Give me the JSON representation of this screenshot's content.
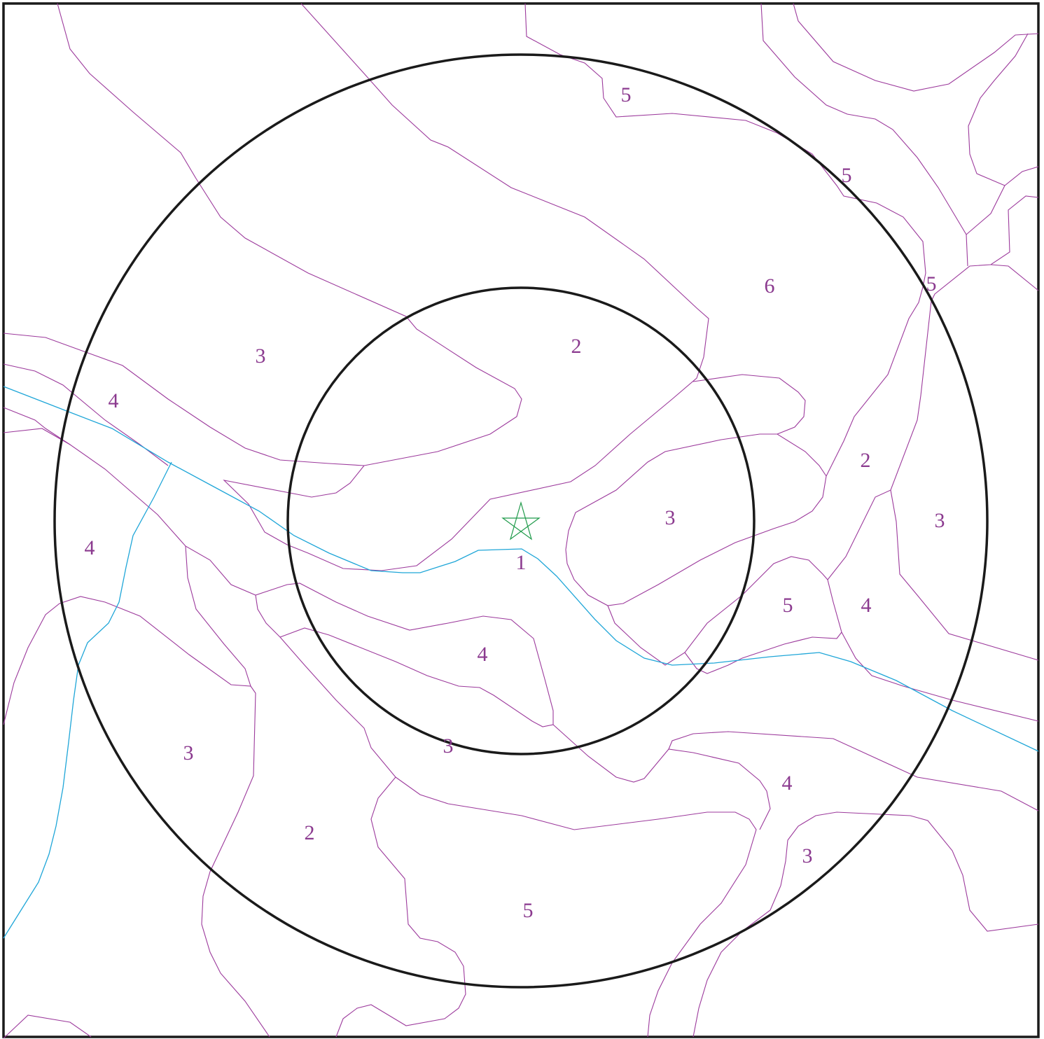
{
  "map": {
    "type": "zoning-contour-map",
    "colors": {
      "frame": "#1a1a1a",
      "rings": "#1a1a1a",
      "zone_boundaries": "#9c3a9c",
      "river": "#1fa6d8",
      "labels": "#8b3a8f",
      "site_marker": "#1f9a4a"
    },
    "site_marker": {
      "icon": "star-icon"
    },
    "zone_labels": [
      "5",
      "5",
      "5",
      "6",
      "2",
      "3",
      "4",
      "2",
      "3",
      "3",
      "1",
      "4",
      "4",
      "5",
      "4",
      "3",
      "3",
      "4",
      "2",
      "3",
      "5"
    ]
  }
}
